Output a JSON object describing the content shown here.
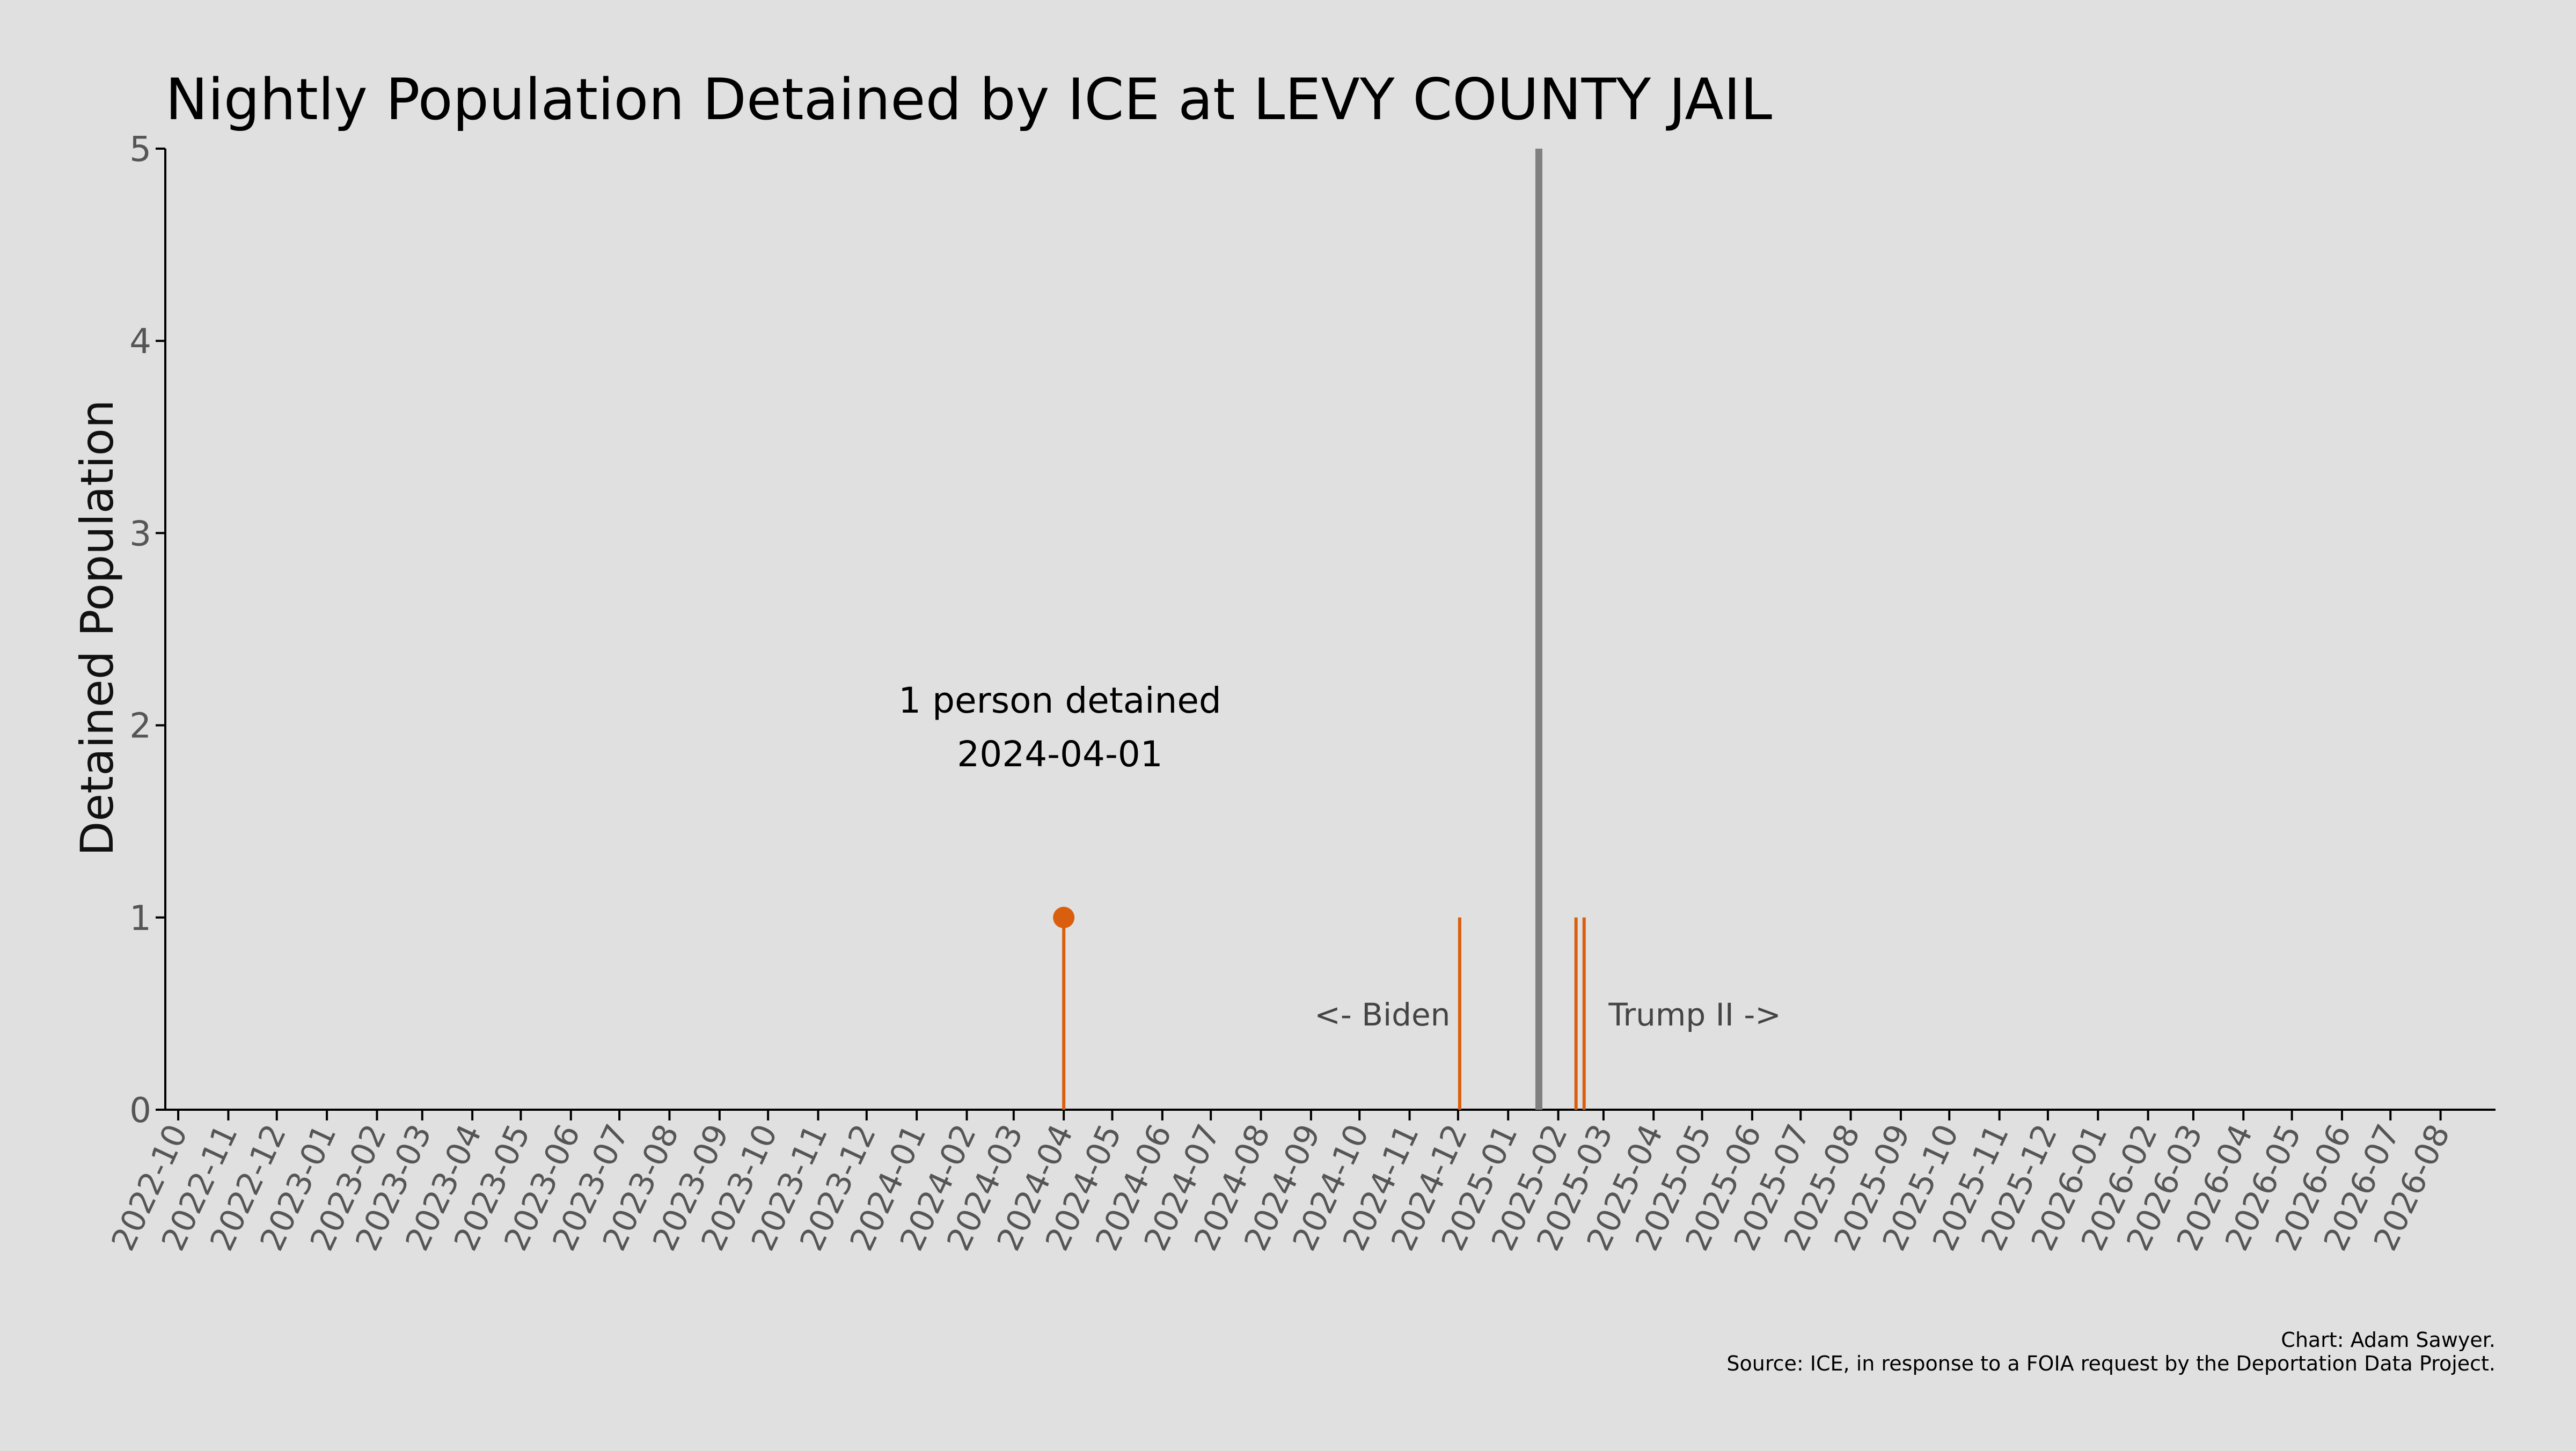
{
  "chart_data": {
    "type": "line",
    "title": "Nightly Population Detained by ICE at LEVY COUNTY JAIL",
    "xlabel": "",
    "ylabel": "Detained Population",
    "ylim": [
      0,
      5
    ],
    "yticks": [
      0,
      1,
      2,
      3,
      4,
      5
    ],
    "xlim": [
      "2022-09-23",
      "2026-09-04"
    ],
    "xticks": [
      "2022-10",
      "2022-11",
      "2022-12",
      "2023-01",
      "2023-02",
      "2023-03",
      "2023-04",
      "2023-05",
      "2023-06",
      "2023-07",
      "2023-08",
      "2023-09",
      "2023-10",
      "2023-11",
      "2023-12",
      "2024-01",
      "2024-02",
      "2024-03",
      "2024-04",
      "2024-05",
      "2024-06",
      "2024-07",
      "2024-08",
      "2024-09",
      "2024-10",
      "2024-11",
      "2024-12",
      "2025-01",
      "2025-02",
      "2025-03",
      "2025-04",
      "2025-05",
      "2025-06",
      "2025-07",
      "2025-08",
      "2025-09",
      "2025-10",
      "2025-11",
      "2025-12",
      "2026-01",
      "2026-02",
      "2026-03",
      "2026-04",
      "2026-05",
      "2026-06",
      "2026-07",
      "2026-08"
    ],
    "grid": false,
    "series": [
      {
        "color": "#d95f0e",
        "points": [
          {
            "x": "2024-04-01",
            "y": 1
          },
          {
            "x": "2024-12-02",
            "y": 1
          },
          {
            "x": "2025-02-12",
            "y": 1
          },
          {
            "x": "2025-02-17",
            "y": 1
          }
        ]
      }
    ],
    "highlight": {
      "x": "2024-04-01",
      "y": 1,
      "color": "#d95f0e"
    },
    "annotation": {
      "line1": "1 person detained",
      "line2": "2024-04-01"
    },
    "divider": {
      "x": "2025-01-20",
      "color": "#808080",
      "left_label": "<- Biden",
      "right_label": "Trump II ->"
    },
    "credit": "Chart: Adam Sawyer.",
    "source": "Source: ICE, in response to a FOIA request by the Deportation Data Project."
  }
}
